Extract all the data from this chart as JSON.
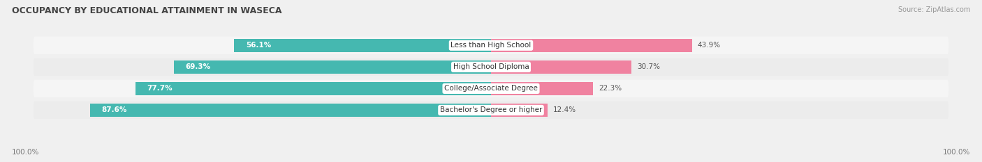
{
  "title": "OCCUPANCY BY EDUCATIONAL ATTAINMENT IN WASECA",
  "source": "Source: ZipAtlas.com",
  "categories": [
    "Less than High School",
    "High School Diploma",
    "College/Associate Degree",
    "Bachelor's Degree or higher"
  ],
  "owner_pct": [
    56.1,
    69.3,
    77.7,
    87.6
  ],
  "renter_pct": [
    43.9,
    30.7,
    22.3,
    12.4
  ],
  "owner_color": "#45b8b0",
  "renter_color": "#f082a0",
  "row_bg_even": "#ececec",
  "row_bg_odd": "#f5f5f5",
  "fig_bg": "#f0f0f0",
  "title_fontsize": 9,
  "bar_label_fontsize": 7.5,
  "cat_label_fontsize": 7.5,
  "axis_label_fontsize": 7.5,
  "legend_fontsize": 8,
  "bar_height": 0.62,
  "total_width": 100.0,
  "axis_label_left": "100.0%",
  "axis_label_right": "100.0%",
  "owner_label_color_inside": "#ffffff",
  "owner_label_color_outside": "#555555",
  "renter_label_color": "#555555"
}
